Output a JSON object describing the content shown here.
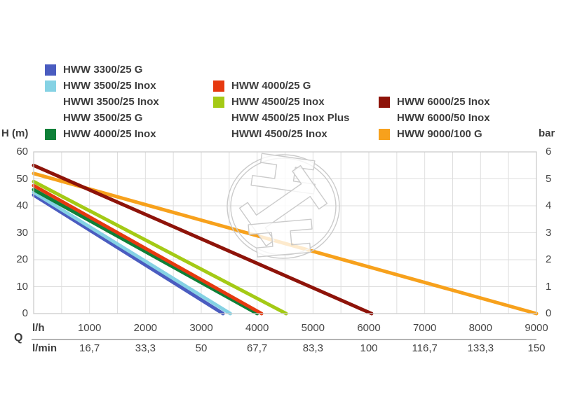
{
  "chart_data": {
    "type": "line",
    "title": "",
    "description": "Pump performance curves: head H versus flow rate Q",
    "y_axis_left": {
      "label": "H (m)",
      "range": [
        0,
        60
      ],
      "ticks": [
        0,
        10,
        20,
        30,
        40,
        50,
        60
      ]
    },
    "y_axis_right": {
      "label": "bar",
      "range": [
        0,
        6
      ],
      "ticks": [
        0,
        1,
        2,
        3,
        4,
        5,
        6
      ]
    },
    "x_axis": {
      "row1_label": "l/h",
      "row2_label": "l/min",
      "q_label": "Q",
      "range_lh": [
        0,
        9000
      ],
      "ticks_lh": [
        "1000",
        "2000",
        "3000",
        "4000",
        "5000",
        "6000",
        "7000",
        "8000",
        "9000"
      ],
      "ticks_lmin": [
        "16,7",
        "33,3",
        "50",
        "67,7",
        "83,3",
        "100",
        "116,7",
        "133,3",
        "150"
      ]
    },
    "grid": {
      "x_step_lh": 500,
      "y_step_m": 10,
      "grid_color": "#dedede",
      "border_color": "#cccccc"
    },
    "series": [
      {
        "name": "HWW 3300/25 G",
        "color": "#4a5cc0",
        "points": [
          [
            0,
            44.0
          ],
          [
            3390,
            0
          ]
        ]
      },
      {
        "name": "HWW 3500/25 Inox / HWWI 3500/25 Inox / HWW 3500/25 G",
        "color": "#85d2e4",
        "points": [
          [
            0,
            45.0
          ],
          [
            3520,
            0
          ]
        ]
      },
      {
        "name": "HWW 4000/25 Inox",
        "color": "#0e8038",
        "points": [
          [
            0,
            46.0
          ],
          [
            4000,
            0
          ]
        ]
      },
      {
        "name": "HWW 4000/25 G",
        "color": "#e6390f",
        "points": [
          [
            0,
            47.5
          ],
          [
            4080,
            0
          ]
        ]
      },
      {
        "name": "HWW 4500/25 Inox / HWW 4500/25 Inox Plus / HWWI 4500/25 Inox",
        "color": "#a4ca15",
        "points": [
          [
            0,
            49.0
          ],
          [
            4520,
            0
          ]
        ]
      },
      {
        "name": "HWW 9000/100 G",
        "color": "#f7a11c",
        "points": [
          [
            0,
            52.0
          ],
          [
            9000,
            0
          ]
        ]
      },
      {
        "name": "HWW 6000/25 Inox / HWW 6000/50 Inox",
        "color": "#8e1309",
        "points": [
          [
            0,
            55.0
          ],
          [
            6050,
            0
          ]
        ]
      }
    ]
  },
  "legend": {
    "columns": [
      [
        {
          "swatch": "#4a5cc0",
          "label": "HWW 3300/25 G"
        },
        {
          "swatch": "#85d2e4",
          "label": "HWW 3500/25 Inox"
        },
        {
          "swatch": null,
          "label": "HWWI 3500/25 Inox"
        },
        {
          "swatch": null,
          "label": "HWW 3500/25 G"
        },
        {
          "swatch": "#0e8038",
          "label": "HWW 4000/25 Inox"
        }
      ],
      [
        {
          "swatch": "#e6390f",
          "label": "HWW 4000/25 G"
        },
        {
          "swatch": "#a4ca15",
          "label": "HWW 4500/25 Inox"
        },
        {
          "swatch": null,
          "label": "HWW 4500/25 Inox Plus"
        },
        {
          "swatch": null,
          "label": "HWWI 4500/25 Inox"
        }
      ],
      [
        {
          "swatch": "#8e1309",
          "label": "HWW 6000/25 Inox"
        },
        {
          "swatch": null,
          "label": "HWW 6000/50 Inox"
        },
        {
          "swatch": "#f7a11c",
          "label": "HWW 9000/100 G"
        }
      ]
    ]
  },
  "watermark": {
    "present": true,
    "shape": "circular logo with three i-beam glyphs",
    "color": "#cbcbcb"
  }
}
